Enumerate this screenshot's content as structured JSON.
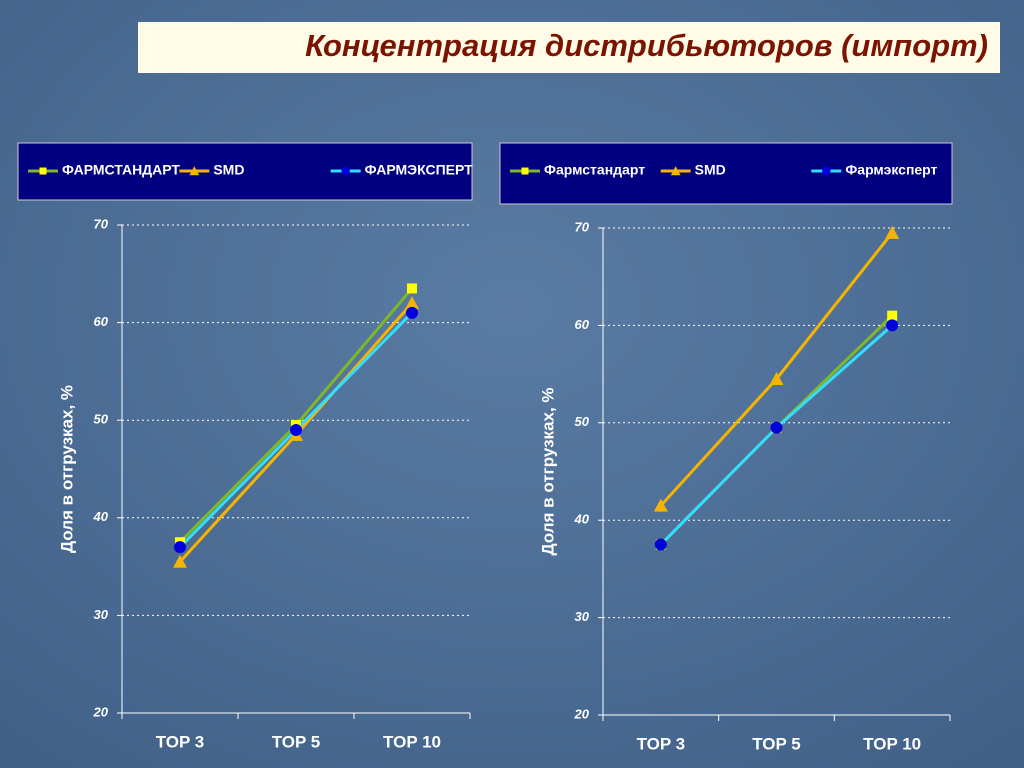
{
  "title": "Концентрация дистрибьюторов (импорт)",
  "chart_data": [
    {
      "type": "line",
      "ylabel": "Доля в отгрузках, %",
      "categories": [
        "TOP 3",
        "TOP 5",
        "TOP 10"
      ],
      "ylim": [
        20,
        70
      ],
      "yticks": [
        20,
        30,
        40,
        50,
        60,
        70
      ],
      "grid": true,
      "series": [
        {
          "name": "ФАРМСТАНДАРТ",
          "color": "#7cb82a",
          "marker": "square",
          "marker_color": "#ffff00",
          "values": [
            37.5,
            49.5,
            63.5
          ]
        },
        {
          "name": "SMD",
          "color": "#f5b400",
          "marker": "triangle",
          "marker_color": "#f5b400",
          "values": [
            35.5,
            48.5,
            62
          ]
        },
        {
          "name": "ФАРМЭКСПЕРТ",
          "color": "#33ddff",
          "marker": "circle",
          "marker_color": "#0000dd",
          "values": [
            37,
            49,
            61
          ]
        }
      ]
    },
    {
      "type": "line",
      "ylabel": "Доля в отгрузках, %",
      "categories": [
        "TOP 3",
        "TOP 5",
        "TOP 10"
      ],
      "ylim": [
        20,
        70
      ],
      "yticks": [
        20,
        30,
        40,
        50,
        60,
        70
      ],
      "grid": true,
      "series": [
        {
          "name": "Фармстандарт",
          "color": "#7cb82a",
          "marker": "square",
          "marker_color": "#ffff00",
          "values": [
            37.5,
            49.5,
            61
          ]
        },
        {
          "name": "SMD",
          "color": "#f5b400",
          "marker": "triangle",
          "marker_color": "#f5b400",
          "values": [
            41.5,
            54.5,
            69.5
          ]
        },
        {
          "name": "Фармэксперт",
          "color": "#33ddff",
          "marker": "circle",
          "marker_color": "#0000dd",
          "values": [
            37.5,
            49.5,
            60
          ]
        }
      ]
    }
  ]
}
